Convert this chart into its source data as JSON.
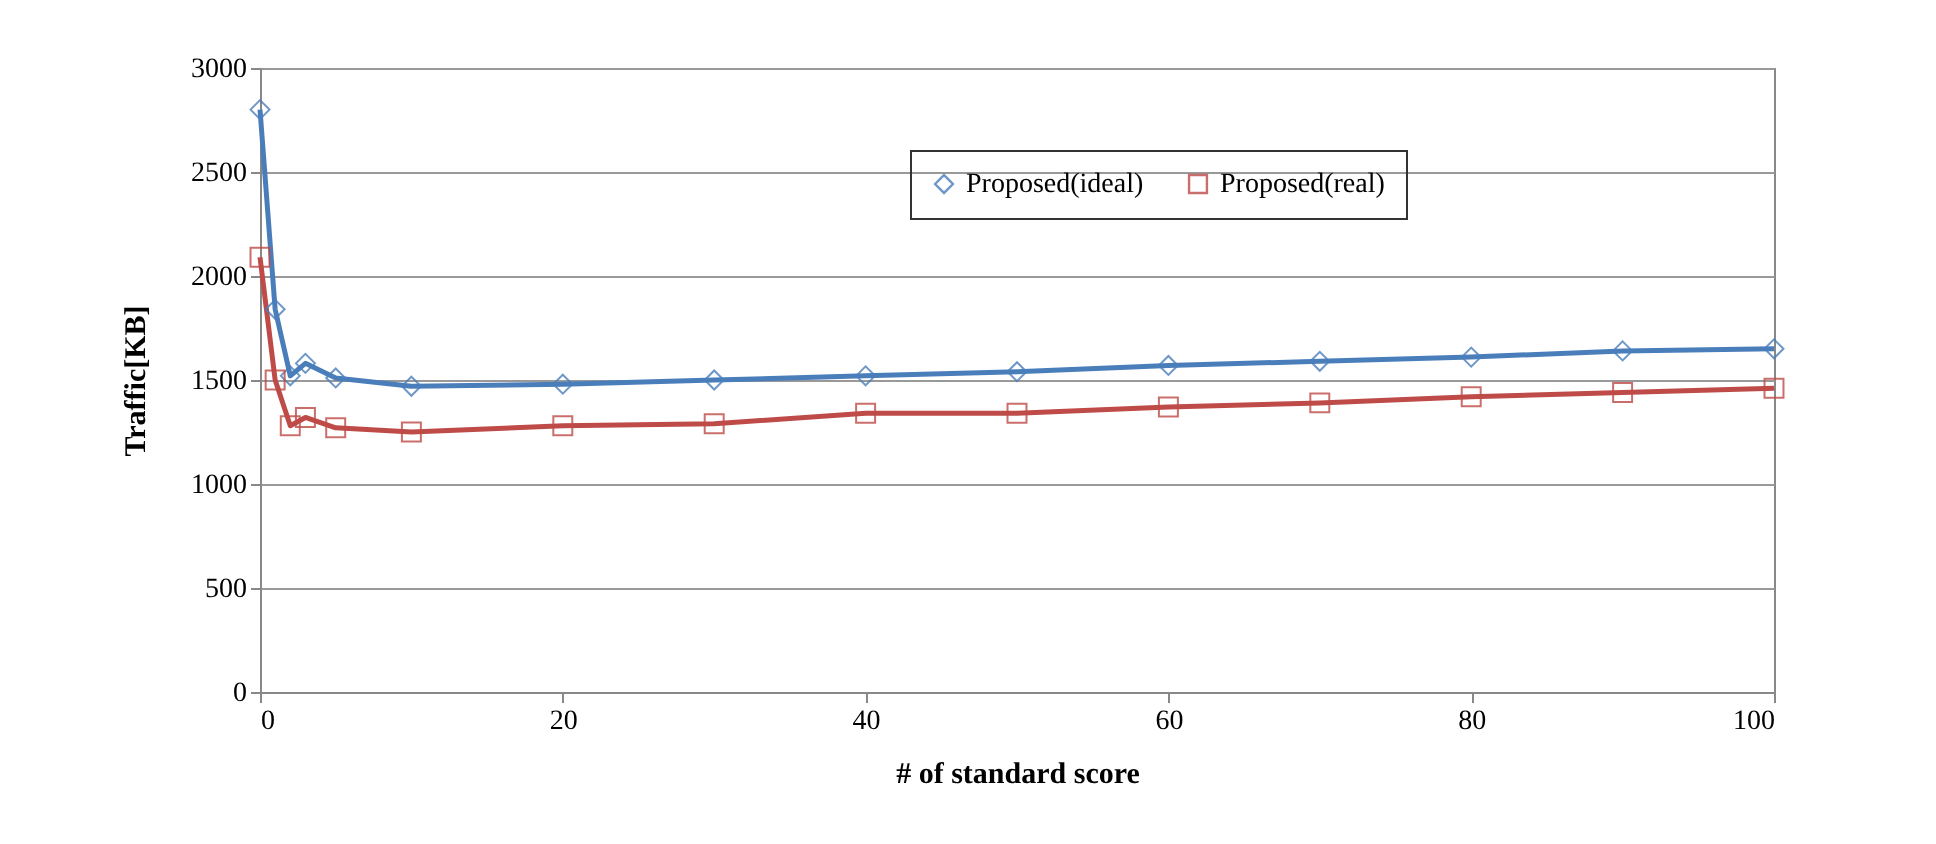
{
  "chart_data": {
    "type": "line",
    "xlabel": "# of standard score",
    "ylabel": "Traffic[KB]",
    "x": [
      0,
      1,
      2,
      3,
      5,
      10,
      20,
      30,
      40,
      50,
      60,
      70,
      80,
      90,
      100
    ],
    "series": [
      {
        "name": "Proposed(ideal)",
        "color": "#4a7ebb",
        "marker": "diamond",
        "values": [
          2800,
          1840,
          1520,
          1580,
          1510,
          1470,
          1480,
          1500,
          1520,
          1540,
          1570,
          1590,
          1610,
          1640,
          1650
        ]
      },
      {
        "name": "Proposed(real)",
        "color": "#be4b48",
        "marker": "square",
        "values": [
          2090,
          1500,
          1280,
          1320,
          1270,
          1250,
          1280,
          1290,
          1340,
          1340,
          1370,
          1390,
          1420,
          1440,
          1460
        ]
      }
    ],
    "xlim": [
      0,
      100
    ],
    "xticks": [
      0,
      20,
      40,
      60,
      80,
      100
    ],
    "ylim": [
      0,
      3000
    ],
    "yticks": [
      0,
      500,
      1000,
      1500,
      2000,
      2500,
      3000
    ],
    "grid": "y",
    "legend": "top right",
    "line_style": "solid"
  }
}
